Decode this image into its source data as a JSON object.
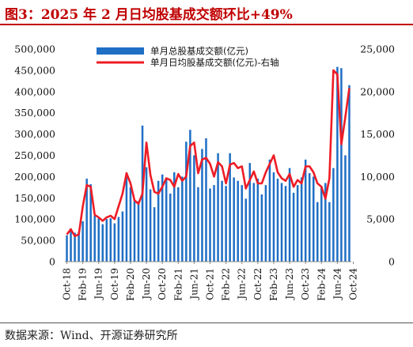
{
  "title": "图3：2025 年 2 月日均股基成交额环比+49%",
  "source": "数据来源：Wind、开源证券研究所",
  "chart_data": {
    "type": "bar+line",
    "x_tick_labels": [
      "Oct-18",
      "Feb-19",
      "Jun-19",
      "Oct-19",
      "Feb-20",
      "Jun-20",
      "Oct-20",
      "Feb-21",
      "Jun-21",
      "Oct-21",
      "Feb-22",
      "Jun-22",
      "Oct-22",
      "Feb-23",
      "Jun-23",
      "Oct-23",
      "Feb-24",
      "Jun-24",
      "Oct-24"
    ],
    "y_left": {
      "min": 0,
      "max": 500000,
      "ticks": [
        "0",
        "50,000",
        "100,000",
        "150,000",
        "200,000",
        "250,000",
        "300,000",
        "350,000",
        "400,000",
        "450,000",
        "500,000"
      ]
    },
    "y_right": {
      "min": 0,
      "max": 25000,
      "ticks": [
        "0",
        "5,000",
        "10,000",
        "15,000",
        "20,000",
        "25,000"
      ]
    },
    "legend_position": "top-center",
    "grid": false,
    "series": [
      {
        "name": "单月总股基成交额(亿元)",
        "kind": "bar",
        "axis": "left",
        "color": "#1f6fc5",
        "values": [
          62000,
          78000,
          68000,
          70000,
          95000,
          195000,
          182000,
          108000,
          102000,
          88000,
          100000,
          102000,
          90000,
          105000,
          118000,
          210000,
          175000,
          145000,
          142000,
          320000,
          222000,
          170000,
          128000,
          190000,
          205000,
          198000,
          160000,
          210000,
          175000,
          200000,
          282000,
          310000,
          250000,
          175000,
          265000,
          290000,
          172000,
          180000,
          255000,
          190000,
          178000,
          255000,
          198000,
          190000,
          180000,
          148000,
          232000,
          185000,
          195000,
          158000,
          180000,
          240000,
          210000,
          195000,
          185000,
          178000,
          220000,
          162000,
          180000,
          198000,
          240000,
          208000,
          200000,
          140000,
          178000,
          185000,
          140000,
          220000,
          458000,
          455000,
          250000,
          415000
        ]
      },
      {
        "name": "单月日均股基成交额(亿元)-右轴",
        "kind": "line",
        "axis": "right",
        "color": "#ee1c25",
        "values": [
          3200,
          3800,
          3000,
          3200,
          6500,
          9000,
          8800,
          5500,
          5200,
          4800,
          5200,
          5400,
          5000,
          6500,
          8000,
          10400,
          9200,
          7200,
          6800,
          8000,
          14000,
          10200,
          8200,
          8000,
          8800,
          9800,
          9600,
          8800,
          10300,
          9500,
          10000,
          13600,
          14000,
          10400,
          12000,
          12200,
          11500,
          10000,
          11700,
          11200,
          9200,
          11400,
          11600,
          11000,
          11200,
          8600,
          9600,
          10600,
          9200,
          9200,
          10500,
          11500,
          12500,
          10500,
          9800,
          9500,
          10300,
          8800,
          9600,
          9200,
          11200,
          11200,
          10500,
          9200,
          8800,
          7400,
          9800,
          22500,
          22000,
          13800,
          17000,
          20400
        ]
      }
    ]
  }
}
